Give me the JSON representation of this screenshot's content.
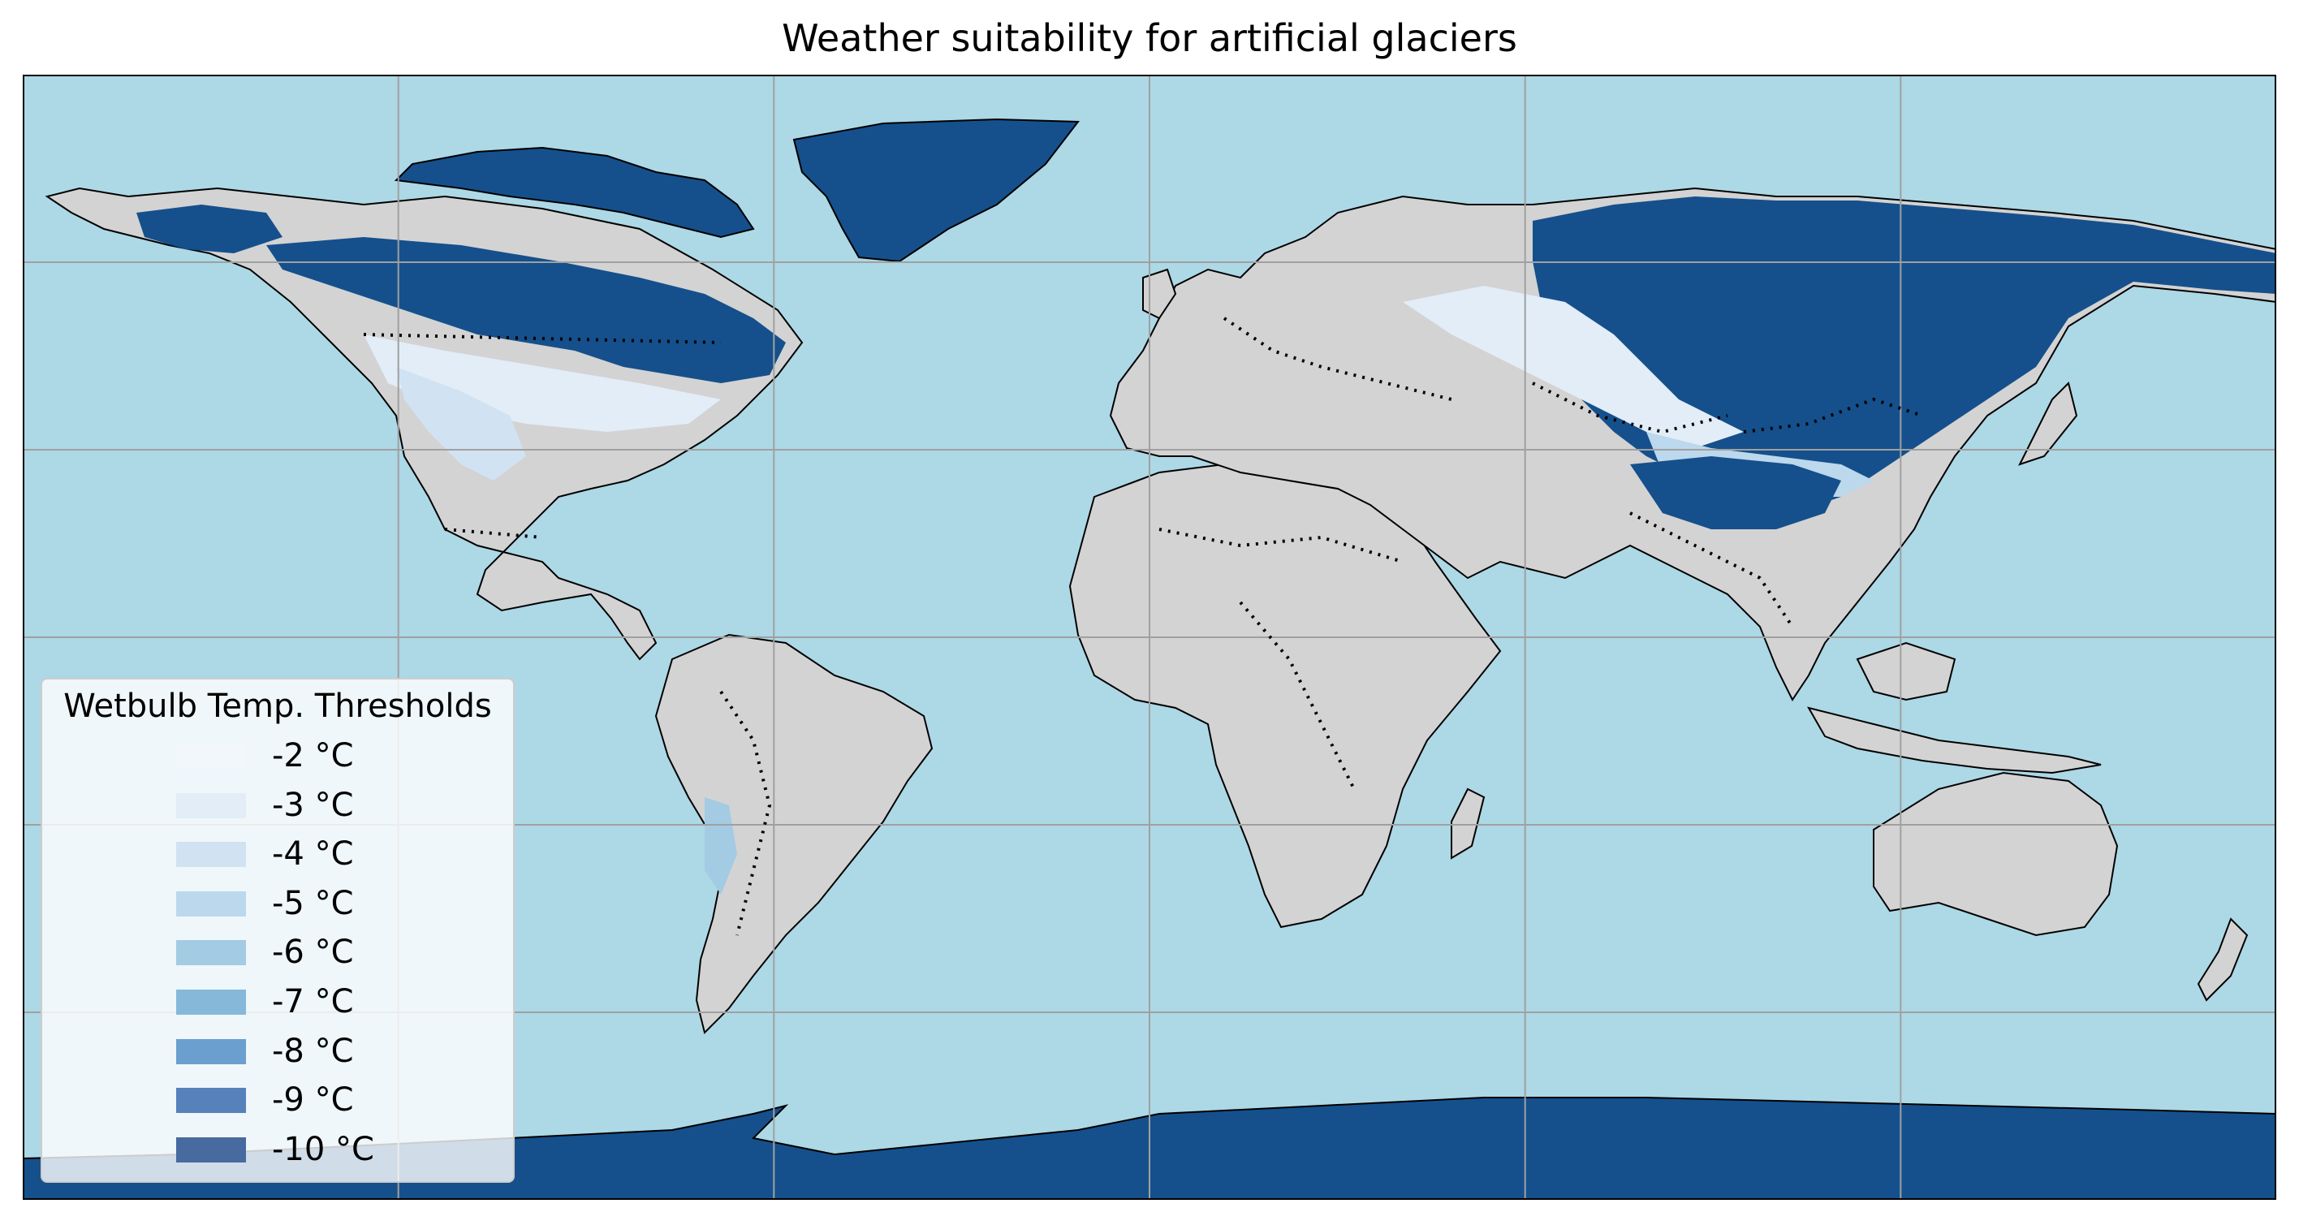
{
  "title": "Weather suitability for artificial glaciers",
  "colors": {
    "ocean": "#add8e6",
    "land": "#d3d3d3",
    "ice": "#15508c",
    "gridline": "#a0a0a0",
    "coastline": "#000000"
  },
  "map": {
    "projection": "PlateCarree",
    "extent_lon": [
      -180,
      180
    ],
    "extent_lat": [
      -90,
      90
    ],
    "gridlines": true,
    "borders_style": "dotted"
  },
  "legend": {
    "title": "Wetbulb Temp. Thresholds",
    "placement": "lower-left",
    "items": [
      {
        "label": "-2 °C",
        "color": "#f2f7fc"
      },
      {
        "label": "-3 °C",
        "color": "#e2edf7"
      },
      {
        "label": "-4 °C",
        "color": "#d1e2f2"
      },
      {
        "label": "-5 °C",
        "color": "#bcd8ec"
      },
      {
        "label": "-6 °C",
        "color": "#a3cbe3"
      },
      {
        "label": "-7 °C",
        "color": "#86b8da"
      },
      {
        "label": "-8 °C",
        "color": "#6b9fcf"
      },
      {
        "label": "-9 °C",
        "color": "#5681bb"
      },
      {
        "label": "-10 °C",
        "color": "#476a9f"
      }
    ]
  }
}
